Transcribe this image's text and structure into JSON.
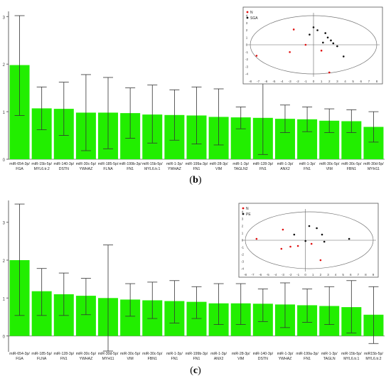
{
  "chart_data": [
    {
      "type": "bar",
      "panel_label": "b",
      "categories": [
        [
          "miR-654-3p/",
          "FGA"
        ],
        [
          "miR-15b-5p/",
          "MYL6.tr.2"
        ],
        [
          "miR-140-3p/",
          "DSTN"
        ],
        [
          "miR-30c-5p/",
          "YWHAZ"
        ],
        [
          "miR-185-5p/",
          "FLNA"
        ],
        [
          "miR-199b-3p/",
          "FN1"
        ],
        [
          "miR-15b-5p/",
          "MYL6.tr.1"
        ],
        [
          "miR-1-3p/",
          "YWHAZ"
        ],
        [
          "miR-199a-3p/",
          "FN1"
        ],
        [
          "miR-28-3p/",
          "VIM"
        ],
        [
          "miR-1-3p/",
          "TAGLN2"
        ],
        [
          "miR-128-3p/",
          "FN1"
        ],
        [
          "miR-1-3p/",
          "ANX2"
        ],
        [
          "miR-1-3p/",
          "FN1"
        ],
        [
          "miR-30c-5p/",
          "VIM"
        ],
        [
          "miR-30c-5p/",
          "FBN1"
        ],
        [
          "miR-30d-5p/",
          "MYH11"
        ]
      ],
      "values": [
        1.98,
        1.07,
        1.06,
        0.98,
        0.98,
        0.97,
        0.94,
        0.93,
        0.92,
        0.89,
        0.88,
        0.87,
        0.85,
        0.84,
        0.81,
        0.8,
        0.68
      ],
      "error_upper": [
        3.02,
        1.52,
        1.62,
        1.78,
        1.72,
        1.5,
        1.56,
        1.46,
        1.52,
        1.48,
        1.1,
        1.62,
        1.14,
        1.1,
        1.06,
        1.04,
        1.0
      ],
      "error_lower": [
        0.92,
        0.62,
        0.5,
        0.18,
        0.22,
        0.44,
        0.34,
        0.4,
        0.32,
        0.3,
        0.64,
        0.1,
        0.56,
        0.58,
        0.56,
        0.56,
        0.36
      ],
      "yticks": [
        "0",
        "1",
        "2",
        "3"
      ],
      "ylim": [
        0,
        3.05
      ],
      "bar_color": "#22ee00",
      "inset": {
        "type": "scatter",
        "legend": [
          "N",
          "SGA"
        ],
        "xticks": [
          "-8",
          "-7",
          "-6",
          "-5",
          "-4",
          "-3",
          "-2",
          "-1",
          "0",
          "1",
          "2",
          "3",
          "4",
          "5",
          "6",
          "7",
          "8"
        ],
        "yticks": [
          "4",
          "3",
          "2",
          "1",
          "0",
          "-1",
          "-2",
          "-3",
          "-4"
        ],
        "xlim": [
          -8,
          8
        ],
        "ylim": [
          -4,
          4
        ],
        "series": [
          {
            "legend": "N",
            "color": "#e01010",
            "points": [
              [
                -7.2,
                -1.5
              ],
              [
                -2.5,
                2.1
              ],
              [
                -3.0,
                -1.0
              ],
              [
                -1.0,
                0.0
              ],
              [
                1.0,
                -0.8
              ],
              [
                2.0,
                -3.8
              ]
            ]
          },
          {
            "legend": "SGA",
            "color": "#111111",
            "points": [
              [
                0.0,
                2.4
              ],
              [
                0.5,
                2.0
              ],
              [
                1.5,
                1.6
              ],
              [
                1.8,
                1.0
              ],
              [
                2.2,
                0.6
              ],
              [
                2.5,
                0.2
              ],
              [
                3.0,
                -0.2
              ],
              [
                1.2,
                0.3
              ],
              [
                3.8,
                -1.6
              ],
              [
                -0.5,
                1.4
              ]
            ]
          }
        ]
      }
    },
    {
      "type": "bar",
      "panel_label": "c",
      "categories": [
        [
          "miR-654-3p/",
          "FGA"
        ],
        [
          "miR-185-5p/",
          "FLNA"
        ],
        [
          "miR-128-3p/",
          "FN1"
        ],
        [
          "miR-30c-5p/",
          "YWHAZ"
        ],
        [
          "miR-30d-5p/",
          "MYH11"
        ],
        [
          "miR-30c-5p/",
          "VIM"
        ],
        [
          "miR-30c-5p/",
          "FBN1"
        ],
        [
          "miR-1-3p/",
          "FN1"
        ],
        [
          "miR-199b-3p/",
          "FN1"
        ],
        [
          "miR-1-3p/",
          "ANX2"
        ],
        [
          "miR-28-3p/",
          "VIM"
        ],
        [
          "miR-140-3p/",
          "DSTN"
        ],
        [
          "miR-1-3p/",
          "YWHAZ"
        ],
        [
          "miR-199a-3p/",
          "FN1"
        ],
        [
          "miR-1-3p/",
          "TAGLN"
        ],
        [
          "miR-15b-5p/",
          "MYL6.tr.1"
        ],
        [
          "miR15b-5p/",
          "MYL6.tr.2"
        ]
      ],
      "values": [
        2.0,
        1.18,
        1.1,
        1.06,
        1.0,
        0.96,
        0.94,
        0.92,
        0.9,
        0.86,
        0.86,
        0.85,
        0.83,
        0.81,
        0.79,
        0.76,
        0.56
      ],
      "error_upper": [
        3.48,
        1.78,
        1.66,
        1.52,
        2.4,
        1.38,
        1.42,
        1.46,
        1.3,
        1.38,
        1.38,
        1.24,
        1.4,
        1.24,
        1.3,
        1.46,
        1.3
      ],
      "error_lower": [
        0.54,
        0.54,
        0.54,
        0.56,
        -0.4,
        0.52,
        0.46,
        0.34,
        0.46,
        0.3,
        0.3,
        0.38,
        0.22,
        0.36,
        0.3,
        0.08,
        -0.2
      ],
      "yticks": [
        "0",
        "1",
        "2",
        "3"
      ],
      "ylim": [
        -0.42,
        3.5
      ],
      "bar_color": "#22ee00",
      "inset": {
        "type": "scatter",
        "legend": [
          "N",
          "PE"
        ],
        "xticks": [
          "-8",
          "-7",
          "-6",
          "-5",
          "-4",
          "-3",
          "-2",
          "-1",
          "0",
          "1",
          "2",
          "3",
          "4",
          "5",
          "6",
          "7",
          "8",
          "9"
        ],
        "yticks": [
          "4",
          "3",
          "2",
          "1",
          "0",
          "-1",
          "-2",
          "-3",
          "-4"
        ],
        "xlim": [
          -8,
          9
        ],
        "ylim": [
          -4,
          4
        ],
        "series": [
          {
            "legend": "N",
            "color": "#e01010",
            "points": [
              [
                -6.5,
                0.2
              ],
              [
                -3.0,
                1.5
              ],
              [
                -3.2,
                -1.2
              ],
              [
                -2.0,
                -0.9
              ],
              [
                -1.0,
                -0.8
              ],
              [
                0.8,
                -0.5
              ],
              [
                2.0,
                -2.8
              ]
            ]
          },
          {
            "legend": "PE",
            "color": "#111111",
            "points": [
              [
                0.5,
                2.0
              ],
              [
                1.5,
                1.7
              ],
              [
                2.2,
                0.8
              ],
              [
                2.5,
                -0.2
              ],
              [
                0.0,
                -0.1
              ],
              [
                -1.5,
                0.8
              ],
              [
                5.8,
                0.2
              ]
            ]
          }
        ]
      }
    }
  ]
}
